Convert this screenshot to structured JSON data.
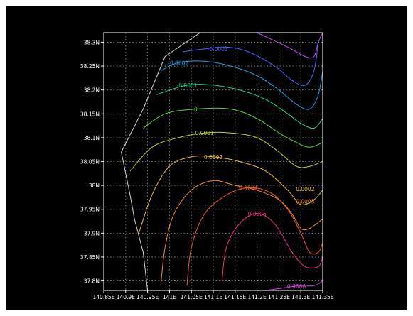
{
  "chart_data": {
    "type": "contour",
    "title": "",
    "xlabel": "",
    "ylabel": "",
    "xlim": [
      140.85,
      141.35
    ],
    "ylim": [
      37.78,
      38.32
    ],
    "x_ticks": [
      {
        "value": 140.85,
        "label": "140.85E"
      },
      {
        "value": 140.9,
        "label": "140.9E"
      },
      {
        "value": 140.95,
        "label": "140.95E"
      },
      {
        "value": 141.0,
        "label": "141E"
      },
      {
        "value": 141.05,
        "label": "141.05E"
      },
      {
        "value": 141.1,
        "label": "141.1E"
      },
      {
        "value": 141.15,
        "label": "141.15E"
      },
      {
        "value": 141.2,
        "label": "141.2E"
      },
      {
        "value": 141.25,
        "label": "141.25E"
      },
      {
        "value": 141.3,
        "label": "141.3E"
      },
      {
        "value": 141.35,
        "label": "141.35E"
      }
    ],
    "y_ticks": [
      {
        "value": 37.8,
        "label": "37.8N"
      },
      {
        "value": 37.85,
        "label": "37.85N"
      },
      {
        "value": 37.9,
        "label": "37.9N"
      },
      {
        "value": 37.95,
        "label": "37.95N"
      },
      {
        "value": 38.0,
        "label": "38N"
      },
      {
        "value": 38.05,
        "label": "38.05N"
      },
      {
        "value": 38.1,
        "label": "38.1N"
      },
      {
        "value": 38.15,
        "label": "38.15N"
      },
      {
        "value": 38.2,
        "label": "38.2N"
      },
      {
        "value": 38.25,
        "label": "38.25N"
      },
      {
        "value": 38.3,
        "label": "38.3N"
      }
    ],
    "grid": true,
    "coastline": [
      [
        141.07,
        38.32
      ],
      [
        140.99,
        38.27
      ],
      [
        140.94,
        38.16
      ],
      [
        140.89,
        38.07
      ],
      [
        140.91,
        37.98
      ],
      [
        140.92,
        37.93
      ],
      [
        140.94,
        37.86
      ],
      [
        140.95,
        37.78
      ]
    ],
    "contours": [
      {
        "label": "-0.0003",
        "color": "#5060ff",
        "label_at": [
          141.11,
          38.286
        ],
        "points": [
          [
            141.03,
            38.28
          ],
          [
            141.08,
            38.286
          ],
          [
            141.13,
            38.29
          ],
          [
            141.18,
            38.28
          ],
          [
            141.24,
            38.25
          ],
          [
            141.28,
            38.22
          ],
          [
            141.31,
            38.21
          ],
          [
            141.33,
            38.24
          ],
          [
            141.34,
            38.3
          ]
        ]
      },
      {
        "label": "-0.0002",
        "color": "#1f9fe0",
        "label_at": [
          141.02,
          38.257
        ],
        "points": [
          [
            140.98,
            38.24
          ],
          [
            141.02,
            38.257
          ],
          [
            141.08,
            38.26
          ],
          [
            141.14,
            38.25
          ],
          [
            141.2,
            38.23
          ],
          [
            141.25,
            38.2
          ],
          [
            141.29,
            38.17
          ],
          [
            141.32,
            38.16
          ],
          [
            141.34,
            38.19
          ],
          [
            141.35,
            38.24
          ]
        ]
      },
      {
        "label": "-0.0001",
        "color": "#20d888",
        "label_at": [
          141.04,
          38.21
        ],
        "points": [
          [
            140.97,
            38.19
          ],
          [
            141.04,
            38.21
          ],
          [
            141.1,
            38.21
          ],
          [
            141.16,
            38.2
          ],
          [
            141.22,
            38.18
          ],
          [
            141.27,
            38.15
          ],
          [
            141.3,
            38.13
          ],
          [
            141.33,
            38.12
          ],
          [
            141.35,
            38.14
          ]
        ]
      },
      {
        "label": "0",
        "color": "#66d22a",
        "label_at": [
          141.06,
          38.16
        ],
        "points": [
          [
            140.94,
            38.12
          ],
          [
            140.99,
            38.15
          ],
          [
            141.06,
            38.16
          ],
          [
            141.14,
            38.16
          ],
          [
            141.2,
            38.14
          ],
          [
            141.25,
            38.11
          ],
          [
            141.29,
            38.09
          ],
          [
            141.32,
            38.08
          ],
          [
            141.35,
            38.09
          ]
        ]
      },
      {
        "label": "0.0001",
        "color": "#b7d82c",
        "label_at": [
          141.08,
          38.11
        ],
        "points": [
          [
            140.91,
            38.03
          ],
          [
            140.96,
            38.08
          ],
          [
            141.02,
            38.1
          ],
          [
            141.08,
            38.11
          ],
          [
            141.14,
            38.11
          ],
          [
            141.2,
            38.1
          ],
          [
            141.25,
            38.07
          ],
          [
            141.29,
            38.04
          ],
          [
            141.32,
            38.04
          ],
          [
            141.35,
            38.05
          ]
        ]
      },
      {
        "label": "0.0002",
        "color": "#f0c030",
        "label_at": [
          141.1,
          38.06
        ],
        "points": [
          [
            140.93,
            37.9
          ],
          [
            140.96,
            37.98
          ],
          [
            141.0,
            38.04
          ],
          [
            141.05,
            38.06
          ],
          [
            141.1,
            38.06
          ],
          [
            141.16,
            38.05
          ],
          [
            141.22,
            38.03
          ],
          [
            141.27,
            37.99
          ],
          [
            141.3,
            37.96
          ],
          [
            141.33,
            37.97
          ],
          [
            141.35,
            37.99
          ]
        ],
        "extra_labels": [
          [
            141.31,
            37.993
          ]
        ]
      },
      {
        "label": "0.0003",
        "color": "#f08c30",
        "label_at": [
          141.31,
          37.967
        ],
        "points": [
          [
            140.98,
            37.79
          ],
          [
            140.99,
            37.87
          ],
          [
            141.01,
            37.94
          ],
          [
            141.05,
            37.99
          ],
          [
            141.1,
            38.01
          ],
          [
            141.15,
            38.0
          ],
          [
            141.2,
            37.99
          ],
          [
            141.25,
            37.97
          ],
          [
            141.28,
            37.94
          ],
          [
            141.3,
            37.91
          ],
          [
            141.32,
            37.91
          ],
          [
            141.35,
            37.93
          ]
        ]
      },
      {
        "label": "0.0004",
        "color": "#f05a30",
        "label_at": [
          141.18,
          37.995
        ],
        "points": [
          [
            141.04,
            37.79
          ],
          [
            141.05,
            37.87
          ],
          [
            141.08,
            37.94
          ],
          [
            141.13,
            37.98
          ],
          [
            141.18,
            37.995
          ],
          [
            141.23,
            37.985
          ],
          [
            141.27,
            37.95
          ],
          [
            141.3,
            37.9
          ],
          [
            141.32,
            37.86
          ],
          [
            141.34,
            37.86
          ],
          [
            141.35,
            37.88
          ]
        ]
      },
      {
        "label": "0.0005",
        "color": "#f0308c",
        "label_at": [
          141.2,
          37.941
        ],
        "points": [
          [
            141.12,
            37.8
          ],
          [
            141.13,
            37.87
          ],
          [
            141.16,
            37.92
          ],
          [
            141.2,
            37.941
          ],
          [
            141.24,
            37.92
          ],
          [
            141.28,
            37.86
          ],
          [
            141.31,
            37.83
          ],
          [
            141.34,
            37.83
          ],
          [
            141.35,
            37.85
          ]
        ]
      },
      {
        "label": "0.0006",
        "color": "#d040e0",
        "label_at": [
          141.29,
          37.789
        ],
        "points": [
          [
            141.22,
            37.78
          ],
          [
            141.26,
            37.785
          ],
          [
            141.29,
            37.789
          ],
          [
            141.33,
            37.79
          ],
          [
            141.35,
            37.8
          ]
        ]
      },
      {
        "label": "",
        "color": "#c050ff",
        "points": [
          [
            141.2,
            38.32
          ],
          [
            141.27,
            38.29
          ],
          [
            141.31,
            38.27
          ],
          [
            141.33,
            38.27
          ],
          [
            141.34,
            38.3
          ],
          [
            141.35,
            38.32
          ]
        ]
      }
    ]
  }
}
